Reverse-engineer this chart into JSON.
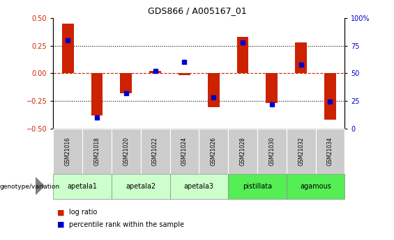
{
  "title": "GDS866 / A005167_01",
  "samples": [
    "GSM21016",
    "GSM21018",
    "GSM21020",
    "GSM21022",
    "GSM21024",
    "GSM21026",
    "GSM21028",
    "GSM21030",
    "GSM21032",
    "GSM21034"
  ],
  "log_ratios": [
    0.45,
    -0.38,
    -0.18,
    0.02,
    -0.02,
    -0.31,
    0.33,
    -0.27,
    0.28,
    -0.42
  ],
  "percentile_ranks": [
    80,
    10,
    32,
    52,
    60,
    28,
    78,
    22,
    58,
    24
  ],
  "groups": [
    {
      "label": "apetala1",
      "samples": [
        0,
        1
      ],
      "color": "#ccffcc"
    },
    {
      "label": "apetala2",
      "samples": [
        2,
        3
      ],
      "color": "#ccffcc"
    },
    {
      "label": "apetala3",
      "samples": [
        4,
        5
      ],
      "color": "#ccffcc"
    },
    {
      "label": "pistillata",
      "samples": [
        6,
        7
      ],
      "color": "#55ee55"
    },
    {
      "label": "agamous",
      "samples": [
        8,
        9
      ],
      "color": "#55ee55"
    }
  ],
  "ylim_left": [
    -0.5,
    0.5
  ],
  "ylim_right": [
    0,
    100
  ],
  "yticks_left": [
    -0.5,
    -0.25,
    0,
    0.25,
    0.5
  ],
  "yticks_right": [
    0,
    25,
    50,
    75,
    100
  ],
  "bar_color": "#cc2200",
  "dot_color": "#0000cc",
  "zero_line_color": "#cc2200",
  "sample_box_color": "#cccccc",
  "legend_red_label": "log ratio",
  "legend_blue_label": "percentile rank within the sample",
  "genotype_label": "genotype/variation"
}
